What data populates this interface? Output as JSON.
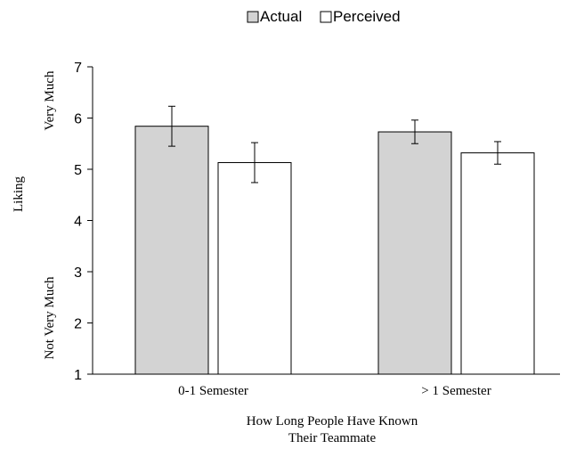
{
  "chart_data": {
    "type": "bar",
    "categories": [
      "0-1 Semester",
      "> 1 Semester"
    ],
    "series": [
      {
        "name": "Actual",
        "values": [
          5.84,
          5.73
        ],
        "error": [
          0.39,
          0.23
        ],
        "color": "#d3d3d3"
      },
      {
        "name": "Perceived",
        "values": [
          5.13,
          5.32
        ],
        "error": [
          0.39,
          0.22
        ],
        "color": "#ffffff"
      }
    ],
    "ylim": [
      1,
      7
    ],
    "yticks": [
      "1",
      "2",
      "3",
      "4",
      "5",
      "6",
      "7"
    ],
    "ylabel": "Liking",
    "ylabel_high": "Very Much",
    "ylabel_low": "Not Very Much",
    "xlabel_line1": "How Long People Have Known",
    "xlabel_line2": "Their Teammate",
    "legend_position": "top",
    "grid": false
  }
}
